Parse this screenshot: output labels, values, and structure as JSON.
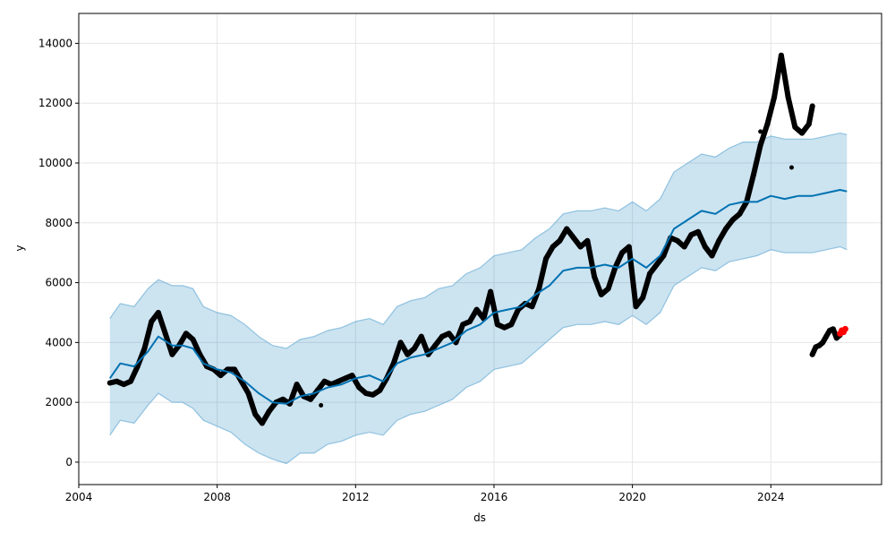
{
  "chart_data": {
    "type": "line",
    "title": "",
    "xlabel": "ds",
    "ylabel": "y",
    "xlim": [
      2004.0,
      2027.2
    ],
    "ylim": [
      -750,
      15000
    ],
    "grid": true,
    "legend": "none",
    "x_ticks": [
      2004,
      2008,
      2012,
      2016,
      2020,
      2024
    ],
    "x_tick_labels": [
      "2004",
      "2008",
      "2012",
      "2016",
      "2020",
      "2024"
    ],
    "y_ticks": [
      0,
      2000,
      4000,
      6000,
      8000,
      10000,
      12000,
      14000
    ],
    "y_tick_labels": [
      "0",
      "2000",
      "4000",
      "6000",
      "8000",
      "10000",
      "12000",
      "14000"
    ],
    "colors": {
      "forecast_line": "#0072B2",
      "interval_fill": "#0072B2",
      "interval_edge": "#6baed6",
      "observed_points": "#000000",
      "recent_points": "#ff0000",
      "grid": "#e5e5e5"
    },
    "forecast": {
      "x": [
        2004.9,
        2005.2,
        2005.6,
        2006.0,
        2006.3,
        2006.7,
        2007.0,
        2007.3,
        2007.6,
        2008.0,
        2008.4,
        2008.8,
        2009.2,
        2009.6,
        2010.0,
        2010.4,
        2010.8,
        2011.2,
        2011.6,
        2012.0,
        2012.4,
        2012.8,
        2013.2,
        2013.6,
        2014.0,
        2014.4,
        2014.8,
        2015.2,
        2015.6,
        2016.0,
        2016.4,
        2016.8,
        2017.2,
        2017.6,
        2018.0,
        2018.4,
        2018.8,
        2019.2,
        2019.6,
        2020.0,
        2020.4,
        2020.8,
        2021.2,
        2021.6,
        2022.0,
        2022.4,
        2022.8,
        2023.2,
        2023.6,
        2024.0,
        2024.4,
        2024.8,
        2025.2,
        2025.6,
        2026.0,
        2026.2
      ],
      "yhat": [
        2800,
        3300,
        3200,
        3700,
        4200,
        3900,
        3900,
        3800,
        3300,
        3100,
        3000,
        2700,
        2300,
        2000,
        1950,
        2200,
        2300,
        2500,
        2600,
        2800,
        2900,
        2700,
        3300,
        3500,
        3600,
        3800,
        4000,
        4400,
        4600,
        5000,
        5100,
        5200,
        5600,
        5900,
        6400,
        6500,
        6500,
        6600,
        6500,
        6800,
        6500,
        6900,
        7800,
        8100,
        8400,
        8300,
        8600,
        8700,
        8700,
        8900,
        8800,
        8900,
        8900,
        9000,
        9100,
        9050
      ],
      "yhat_lower": [
        900,
        1400,
        1300,
        1900,
        2300,
        2000,
        2000,
        1800,
        1400,
        1200,
        1000,
        600,
        300,
        100,
        -50,
        300,
        300,
        600,
        700,
        900,
        1000,
        900,
        1400,
        1600,
        1700,
        1900,
        2100,
        2500,
        2700,
        3100,
        3200,
        3300,
        3700,
        4100,
        4500,
        4600,
        4600,
        4700,
        4600,
        4900,
        4600,
        5000,
        5900,
        6200,
        6500,
        6400,
        6700,
        6800,
        6900,
        7100,
        7000,
        7000,
        7000,
        7100,
        7200,
        7100
      ],
      "yhat_upper": [
        4800,
        5300,
        5200,
        5800,
        6100,
        5900,
        5900,
        5800,
        5200,
        5000,
        4900,
        4600,
        4200,
        3900,
        3800,
        4100,
        4200,
        4400,
        4500,
        4700,
        4800,
        4600,
        5200,
        5400,
        5500,
        5800,
        5900,
        6300,
        6500,
        6900,
        7000,
        7100,
        7500,
        7800,
        8300,
        8400,
        8400,
        8500,
        8400,
        8700,
        8400,
        8800,
        9700,
        10000,
        10300,
        10200,
        10500,
        10700,
        10700,
        10900,
        10800,
        10800,
        10800,
        10900,
        11000,
        10950
      ]
    },
    "observed": {
      "x": [
        2004.9,
        2005.1,
        2005.3,
        2005.5,
        2005.7,
        2005.9,
        2006.1,
        2006.3,
        2006.5,
        2006.7,
        2006.9,
        2007.1,
        2007.3,
        2007.5,
        2007.7,
        2007.9,
        2008.1,
        2008.3,
        2008.5,
        2008.7,
        2008.9,
        2009.1,
        2009.3,
        2009.5,
        2009.7,
        2009.9,
        2010.1,
        2010.3,
        2010.5,
        2010.7,
        2010.9,
        2011.1,
        2011.3,
        2011.5,
        2011.7,
        2011.9,
        2012.1,
        2012.3,
        2012.5,
        2012.7,
        2012.9,
        2013.1,
        2013.3,
        2013.5,
        2013.7,
        2013.9,
        2014.1,
        2014.3,
        2014.5,
        2014.7,
        2014.9,
        2015.1,
        2015.3,
        2015.5,
        2015.7,
        2015.9,
        2016.1,
        2016.3,
        2016.5,
        2016.7,
        2016.9,
        2017.1,
        2017.3,
        2017.5,
        2017.7,
        2017.9,
        2018.1,
        2018.3,
        2018.5,
        2018.7,
        2018.9,
        2019.1,
        2019.3,
        2019.5,
        2019.7,
        2019.9,
        2020.1,
        2020.3,
        2020.5,
        2020.7,
        2020.9,
        2021.1,
        2021.3,
        2021.5,
        2021.7,
        2021.9,
        2022.1,
        2022.3,
        2022.5,
        2022.7,
        2022.9,
        2023.1,
        2023.3,
        2023.5,
        2023.7,
        2023.9,
        2024.1,
        2024.3,
        2024.5,
        2024.7,
        2024.9,
        2025.1,
        2025.2
      ],
      "y": [
        2650,
        2700,
        2600,
        2700,
        3200,
        3800,
        4700,
        5000,
        4300,
        3600,
        3900,
        4300,
        4100,
        3600,
        3200,
        3100,
        2900,
        3100,
        3100,
        2700,
        2300,
        1600,
        1300,
        1700,
        2000,
        2100,
        1950,
        2600,
        2200,
        2100,
        2400,
        2700,
        2600,
        2700,
        2800,
        2900,
        2500,
        2300,
        2250,
        2400,
        2800,
        3300,
        4000,
        3600,
        3800,
        4200,
        3600,
        3900,
        4200,
        4300,
        4000,
        4600,
        4700,
        5100,
        4800,
        5700,
        4600,
        4500,
        4600,
        5100,
        5300,
        5200,
        5800,
        6800,
        7200,
        7400,
        7800,
        7500,
        7200,
        7400,
        6200,
        5600,
        5800,
        6500,
        7000,
        7200,
        5200,
        5500,
        6300,
        6600,
        6900,
        7500,
        7400,
        7200,
        7600,
        7700,
        7200,
        6900,
        7400,
        7800,
        8100,
        8300,
        8700,
        9600,
        10600,
        11300,
        12200,
        13600,
        12200,
        11200,
        11000,
        11300,
        11900
      ]
    },
    "outliers": {
      "x": [
        2011.0,
        2023.7,
        2024.6
      ],
      "y": [
        1900,
        11050,
        9850
      ]
    },
    "recent_observed": {
      "x": [
        2025.2,
        2025.3,
        2025.4,
        2025.5,
        2025.6,
        2025.7,
        2025.8,
        2025.9,
        2026.0
      ],
      "y": [
        3600,
        3850,
        3900,
        4000,
        4200,
        4400,
        4450,
        4150,
        4250
      ]
    },
    "recent_highlight": {
      "x": [
        2026.0,
        2026.05,
        2026.1,
        2026.15
      ],
      "y": [
        4300,
        4400,
        4350,
        4450
      ]
    }
  }
}
